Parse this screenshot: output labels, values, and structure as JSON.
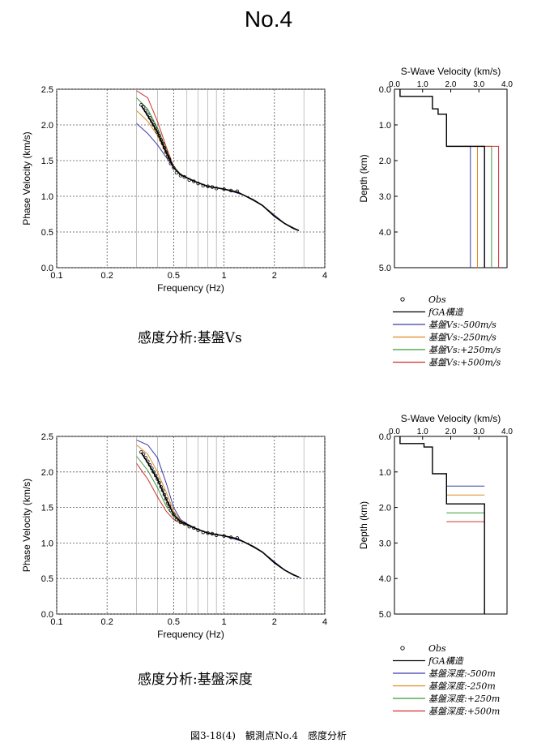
{
  "page_title": "No.4",
  "captions": [
    "感度分析:基盤Vs",
    "感度分析:基盤深度"
  ],
  "footer": "図3-18(4)　観測点No.4　感度分析",
  "legends": [
    [
      {
        "label": "Obs",
        "color": "#000000",
        "kind": "marker"
      },
      {
        "label": "fGA構造",
        "color": "#000000",
        "kind": "line"
      },
      {
        "label": "基盤Vs:-500m/s",
        "color": "#3a3aa8",
        "kind": "line"
      },
      {
        "label": "基盤Vs:-250m/s",
        "color": "#e08a20",
        "kind": "line"
      },
      {
        "label": "基盤Vs:+250m/s",
        "color": "#3a9a3a",
        "kind": "line"
      },
      {
        "label": "基盤Vs:+500m/s",
        "color": "#d03030",
        "kind": "line"
      }
    ],
    [
      {
        "label": "Obs",
        "color": "#000000",
        "kind": "marker"
      },
      {
        "label": "fGA構造",
        "color": "#000000",
        "kind": "line"
      },
      {
        "label": "基盤深度:-500m",
        "color": "#3a3aa8",
        "kind": "line"
      },
      {
        "label": "基盤深度:-250m",
        "color": "#e08a20",
        "kind": "line"
      },
      {
        "label": "基盤深度:+250m",
        "color": "#3a9a3a",
        "kind": "line"
      },
      {
        "label": "基盤深度:+500m",
        "color": "#d03030",
        "kind": "line"
      }
    ]
  ],
  "chart_data": [
    {
      "type": "line",
      "xlabel": "Frequency (Hz)",
      "ylabel": "Phase Velocity (km/s)",
      "xscale": "log",
      "xlim": [
        0.1,
        4
      ],
      "ylim": [
        0,
        2.5
      ],
      "xticks": [
        0.1,
        0.2,
        0.5,
        1,
        2,
        4
      ],
      "xtick_labels": [
        "0.1",
        "0.2",
        "0.5",
        "1",
        "2",
        "4"
      ],
      "yticks": [
        0,
        0.5,
        1.0,
        1.5,
        2.0,
        2.5
      ],
      "ytick_labels": [
        "0.0",
        "0.5",
        "1.0",
        "1.5",
        "2.0",
        "2.5"
      ],
      "grid": true,
      "obs": {
        "x": [
          0.32,
          0.33,
          0.34,
          0.35,
          0.36,
          0.37,
          0.38,
          0.39,
          0.4,
          0.41,
          0.42,
          0.43,
          0.44,
          0.45,
          0.46,
          0.47,
          0.48,
          0.5,
          0.52,
          0.55,
          0.58,
          0.62,
          0.66,
          0.7,
          0.75,
          0.8,
          0.85,
          0.9,
          1.0,
          1.1,
          1.2
        ],
        "y": [
          2.28,
          2.25,
          2.2,
          2.15,
          2.1,
          2.05,
          2.0,
          1.95,
          1.9,
          1.85,
          1.79,
          1.74,
          1.68,
          1.62,
          1.56,
          1.52,
          1.46,
          1.4,
          1.33,
          1.29,
          1.27,
          1.23,
          1.21,
          1.18,
          1.15,
          1.14,
          1.13,
          1.11,
          1.1,
          1.08,
          1.07
        ]
      },
      "series": [
        {
          "name": "fGA構造",
          "color": "#000000",
          "x": [
            0.32,
            0.35,
            0.4,
            0.45,
            0.5,
            0.55,
            0.6,
            0.65,
            0.7,
            0.8,
            0.9,
            1.0,
            1.1,
            1.2,
            1.3,
            1.5,
            1.7,
            2.0,
            2.3,
            2.6,
            2.8
          ],
          "y": [
            2.27,
            2.13,
            1.9,
            1.62,
            1.4,
            1.3,
            1.26,
            1.22,
            1.19,
            1.14,
            1.12,
            1.1,
            1.08,
            1.06,
            1.02,
            0.95,
            0.87,
            0.72,
            0.62,
            0.55,
            0.52
          ]
        },
        {
          "name": "基盤Vs:-500m/s",
          "color": "#3a3aa8",
          "x": [
            0.3,
            0.35,
            0.4,
            0.45,
            0.5,
            0.55,
            0.6,
            0.7,
            0.8,
            1.0,
            1.3,
            1.7,
            2.3,
            2.8
          ],
          "y": [
            2.02,
            1.88,
            1.72,
            1.55,
            1.4,
            1.3,
            1.26,
            1.19,
            1.14,
            1.1,
            1.02,
            0.87,
            0.62,
            0.52
          ]
        },
        {
          "name": "基盤Vs:-250m/s",
          "color": "#e08a20",
          "x": [
            0.3,
            0.35,
            0.4,
            0.45,
            0.5,
            0.55,
            0.6,
            0.7,
            0.8,
            1.0,
            1.3,
            1.7,
            2.3,
            2.8
          ],
          "y": [
            2.2,
            2.05,
            1.85,
            1.6,
            1.4,
            1.3,
            1.26,
            1.19,
            1.14,
            1.1,
            1.02,
            0.87,
            0.62,
            0.52
          ]
        },
        {
          "name": "基盤Vs:+250m/s",
          "color": "#3a9a3a",
          "x": [
            0.3,
            0.35,
            0.4,
            0.45,
            0.5,
            0.55,
            0.6,
            0.7,
            0.8,
            1.0,
            1.3,
            1.7,
            2.3,
            2.8
          ],
          "y": [
            2.38,
            2.22,
            1.96,
            1.66,
            1.41,
            1.31,
            1.26,
            1.19,
            1.14,
            1.1,
            1.02,
            0.87,
            0.62,
            0.52
          ]
        },
        {
          "name": "基盤Vs:+500m/s",
          "color": "#d03030",
          "x": [
            0.3,
            0.35,
            0.4,
            0.45,
            0.5,
            0.55,
            0.6,
            0.7,
            0.8,
            1.0,
            1.3,
            1.7,
            2.3,
            2.8
          ],
          "y": [
            2.48,
            2.38,
            2.05,
            1.7,
            1.42,
            1.31,
            1.26,
            1.19,
            1.14,
            1.1,
            1.02,
            0.87,
            0.62,
            0.52
          ]
        }
      ]
    },
    {
      "type": "line",
      "title": "S-Wave Velocity (km/s)",
      "ylabel": "Depth (km)",
      "xlim": [
        0,
        4
      ],
      "ylim": [
        5,
        0
      ],
      "xticks": [
        0,
        1,
        2,
        3,
        4
      ],
      "xtick_labels": [
        "0.0",
        "1.0",
        "2.0",
        "3.0",
        "4.0"
      ],
      "yticks": [
        0,
        1,
        2,
        3,
        4,
        5
      ],
      "ytick_labels": [
        "0.0",
        "1.0",
        "2.0",
        "3.0",
        "4.0",
        "5.0"
      ],
      "xaxis_position": "top",
      "series": [
        {
          "name": "fGA構造",
          "color": "#000000",
          "x": [
            0.2,
            0.2,
            1.35,
            1.35,
            1.55,
            1.55,
            1.85,
            1.85,
            3.2,
            3.2
          ],
          "y": [
            0,
            0.2,
            0.2,
            0.55,
            0.55,
            0.7,
            0.7,
            1.6,
            1.6,
            5.0
          ]
        },
        {
          "name": "基盤Vs:-500m/s",
          "color": "#3a3aa8",
          "x": [
            1.85,
            2.7,
            2.7
          ],
          "y": [
            1.6,
            1.6,
            5.0
          ]
        },
        {
          "name": "基盤Vs:-250m/s",
          "color": "#e08a20",
          "x": [
            1.85,
            2.95,
            2.95
          ],
          "y": [
            1.6,
            1.6,
            5.0
          ]
        },
        {
          "name": "基盤Vs:+250m/s",
          "color": "#3a9a3a",
          "x": [
            1.85,
            3.45,
            3.45
          ],
          "y": [
            1.6,
            1.6,
            5.0
          ]
        },
        {
          "name": "基盤Vs:+500m/s",
          "color": "#d03030",
          "x": [
            1.85,
            3.7,
            3.7
          ],
          "y": [
            1.6,
            1.6,
            5.0
          ]
        }
      ]
    },
    {
      "type": "line",
      "xlabel": "Frequency (Hz)",
      "ylabel": "Phase Velocity (km/s)",
      "xscale": "log",
      "xlim": [
        0.1,
        4
      ],
      "ylim": [
        0,
        2.5
      ],
      "xticks": [
        0.1,
        0.2,
        0.5,
        1,
        2,
        4
      ],
      "xtick_labels": [
        "0.1",
        "0.2",
        "0.5",
        "1",
        "2",
        "4"
      ],
      "yticks": [
        0,
        0.5,
        1.0,
        1.5,
        2.0,
        2.5
      ],
      "ytick_labels": [
        "0.0",
        "0.5",
        "1.0",
        "1.5",
        "2.0",
        "2.5"
      ],
      "grid": true,
      "obs": {
        "x": [
          0.32,
          0.33,
          0.34,
          0.35,
          0.36,
          0.37,
          0.38,
          0.39,
          0.4,
          0.41,
          0.42,
          0.43,
          0.44,
          0.45,
          0.46,
          0.47,
          0.48,
          0.5,
          0.52,
          0.55,
          0.58,
          0.62,
          0.66,
          0.7,
          0.75,
          0.8,
          0.85,
          0.9,
          1.0,
          1.1,
          1.2
        ],
        "y": [
          2.28,
          2.25,
          2.2,
          2.15,
          2.1,
          2.05,
          2.0,
          1.95,
          1.9,
          1.85,
          1.79,
          1.74,
          1.68,
          1.62,
          1.56,
          1.52,
          1.46,
          1.4,
          1.33,
          1.29,
          1.27,
          1.23,
          1.21,
          1.18,
          1.15,
          1.14,
          1.13,
          1.11,
          1.1,
          1.08,
          1.07
        ]
      },
      "series": [
        {
          "name": "fGA構造",
          "color": "#000000",
          "x": [
            0.32,
            0.35,
            0.4,
            0.45,
            0.5,
            0.55,
            0.6,
            0.65,
            0.7,
            0.8,
            0.9,
            1.0,
            1.1,
            1.2,
            1.3,
            1.5,
            1.7,
            2.0,
            2.3,
            2.6,
            2.8
          ],
          "y": [
            2.27,
            2.13,
            1.9,
            1.62,
            1.4,
            1.3,
            1.26,
            1.22,
            1.19,
            1.14,
            1.12,
            1.1,
            1.08,
            1.06,
            1.02,
            0.95,
            0.87,
            0.72,
            0.62,
            0.55,
            0.52
          ]
        },
        {
          "name": "基盤深度:-500m",
          "color": "#3a3aa8",
          "x": [
            0.3,
            0.35,
            0.4,
            0.45,
            0.5,
            0.55,
            0.6,
            0.7,
            0.8,
            1.0,
            1.3,
            1.7,
            2.3,
            2.9
          ],
          "y": [
            2.45,
            2.38,
            2.2,
            1.85,
            1.5,
            1.33,
            1.27,
            1.19,
            1.14,
            1.1,
            1.02,
            0.87,
            0.62,
            0.5
          ]
        },
        {
          "name": "基盤深度:-250m",
          "color": "#e08a20",
          "x": [
            0.3,
            0.35,
            0.4,
            0.45,
            0.5,
            0.55,
            0.6,
            0.7,
            0.8,
            1.0,
            1.3,
            1.7,
            2.3,
            2.9
          ],
          "y": [
            2.38,
            2.25,
            2.0,
            1.72,
            1.45,
            1.31,
            1.26,
            1.19,
            1.14,
            1.1,
            1.02,
            0.87,
            0.62,
            0.5
          ]
        },
        {
          "name": "基盤深度:+250m",
          "color": "#3a9a3a",
          "x": [
            0.3,
            0.35,
            0.4,
            0.45,
            0.5,
            0.55,
            0.6,
            0.7,
            0.8,
            1.0,
            1.3,
            1.7,
            2.3,
            2.9
          ],
          "y": [
            2.22,
            2.02,
            1.78,
            1.52,
            1.37,
            1.29,
            1.25,
            1.19,
            1.14,
            1.1,
            1.02,
            0.87,
            0.62,
            0.5
          ]
        },
        {
          "name": "基盤深度:+500m",
          "color": "#d03030",
          "x": [
            0.3,
            0.35,
            0.4,
            0.45,
            0.5,
            0.55,
            0.6,
            0.7,
            0.8,
            1.0,
            1.3,
            1.7,
            2.3,
            2.9
          ],
          "y": [
            2.12,
            1.9,
            1.65,
            1.45,
            1.33,
            1.28,
            1.25,
            1.19,
            1.14,
            1.1,
            1.02,
            0.87,
            0.62,
            0.5
          ]
        }
      ]
    },
    {
      "type": "line",
      "title": "S-Wave Velocity (km/s)",
      "ylabel": "Depth (km)",
      "xlim": [
        0,
        4
      ],
      "ylim": [
        5,
        0
      ],
      "xticks": [
        0,
        1,
        2,
        3,
        4
      ],
      "xtick_labels": [
        "0.0",
        "1.0",
        "2.0",
        "3.0",
        "4.0"
      ],
      "yticks": [
        0,
        1,
        2,
        3,
        4,
        5
      ],
      "ytick_labels": [
        "0.0",
        "1.0",
        "2.0",
        "3.0",
        "4.0",
        "5.0"
      ],
      "xaxis_position": "top",
      "series": [
        {
          "name": "fGA構造",
          "color": "#000000",
          "x": [
            0.2,
            0.2,
            1.05,
            1.05,
            1.35,
            1.35,
            1.85,
            1.85,
            3.2,
            3.2
          ],
          "y": [
            0,
            0.2,
            0.2,
            0.3,
            0.3,
            1.05,
            1.05,
            1.9,
            1.9,
            5.0
          ]
        },
        {
          "name": "基盤深度:-500m",
          "color": "#3a3aa8",
          "x": [
            1.85,
            3.2
          ],
          "y": [
            1.4,
            1.4
          ]
        },
        {
          "name": "基盤深度:-250m",
          "color": "#e08a20",
          "x": [
            1.85,
            3.2
          ],
          "y": [
            1.65,
            1.65
          ]
        },
        {
          "name": "基盤深度:+250m",
          "color": "#3a9a3a",
          "x": [
            1.85,
            3.2
          ],
          "y": [
            2.15,
            2.15
          ]
        },
        {
          "name": "基盤深度:+500m",
          "color": "#d03030",
          "x": [
            1.85,
            3.2
          ],
          "y": [
            2.4,
            2.4
          ]
        }
      ]
    }
  ]
}
